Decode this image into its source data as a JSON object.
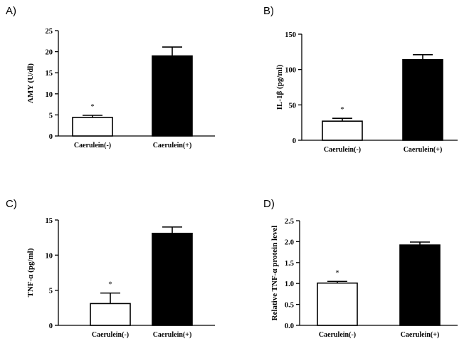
{
  "chart_data": [
    {
      "type": "bar",
      "panel": "A)",
      "categories": [
        "Caerulein(-)",
        "Caerulein(+)"
      ],
      "values": [
        4.4,
        19.0
      ],
      "errors": [
        0.5,
        2.1
      ],
      "bar_colors": [
        "#ffffff",
        "#000000"
      ],
      "significance": [
        "*",
        ""
      ],
      "ylabel": "AMY (U/dl)",
      "ylim": [
        0,
        25
      ],
      "yticks": [
        0,
        5,
        10,
        15,
        20,
        25
      ],
      "ytick_labels": [
        "0",
        "5",
        "10",
        "15",
        "20",
        "25"
      ]
    },
    {
      "type": "bar",
      "panel": "B)",
      "categories": [
        "Caerulein(-)",
        "Caerulein(+)"
      ],
      "values": [
        27,
        114
      ],
      "errors": [
        4,
        7
      ],
      "bar_colors": [
        "#ffffff",
        "#000000"
      ],
      "significance": [
        "*",
        ""
      ],
      "ylabel": "IL-1β  (pg/ml)",
      "ylim": [
        0,
        150
      ],
      "yticks": [
        0,
        50,
        100,
        150
      ],
      "ytick_labels": [
        "0",
        "50",
        "100",
        "150"
      ]
    },
    {
      "type": "bar",
      "panel": "C)",
      "categories": [
        "Caerulein(-)",
        "Caerulein(+)"
      ],
      "values": [
        3.1,
        13.1
      ],
      "errors": [
        1.5,
        0.9
      ],
      "bar_colors": [
        "#ffffff",
        "#000000"
      ],
      "significance": [
        "*",
        ""
      ],
      "ylabel": "TNF-α (pg/ml)",
      "ylim": [
        0,
        15
      ],
      "yticks": [
        0,
        5,
        10,
        15
      ],
      "ytick_labels": [
        "0",
        "5",
        "10",
        "15"
      ]
    },
    {
      "type": "bar",
      "panel": "D)",
      "categories": [
        "Caerulein(-)",
        "Caerulein(+)"
      ],
      "values": [
        1.01,
        1.92
      ],
      "errors": [
        0.04,
        0.07
      ],
      "bar_colors": [
        "#ffffff",
        "#000000"
      ],
      "significance": [
        "*",
        ""
      ],
      "ylabel": "Relative TNF-α protein level",
      "ylim": [
        0,
        2.5
      ],
      "yticks": [
        0,
        0.5,
        1.0,
        1.5,
        2.0,
        2.5
      ],
      "ytick_labels": [
        "0.0",
        "0.5",
        "1.0",
        "1.5",
        "2.0",
        "2.5"
      ]
    }
  ]
}
